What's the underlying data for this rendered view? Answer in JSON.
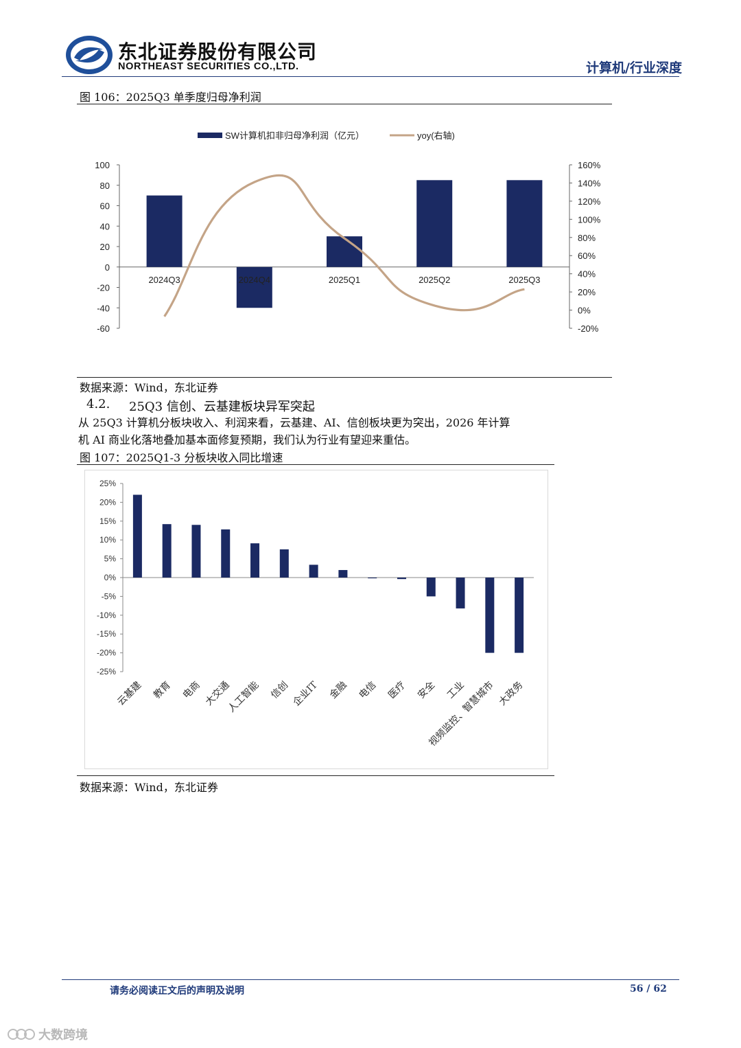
{
  "header": {
    "company_cn": "东北证券股份有限公司",
    "company_en": "NORTHEAST SECURITIES CO.,LTD.",
    "industry": "计算机/行业深度"
  },
  "figure106": {
    "caption": "图 106：2025Q3 单季度归母净利润",
    "source": "数据来源：Wind，东北证券"
  },
  "section": {
    "number": "4.2.",
    "title": "25Q3 信创、云基建板块异军突起",
    "paragraph_line1": "从 25Q3 计算机分板块收入、利润来看，云基建、AI、信创板块更为突出，2026 年计算",
    "paragraph_line2": "机 AI 商业化落地叠加基本面修复预期，我们认为行业有望迎来重估。"
  },
  "figure107": {
    "caption": "图 107：2025Q1-3 分板块收入同比增速",
    "source": "数据来源：Wind，东北证券"
  },
  "footer": {
    "disclaimer": "请务必阅读正文后的声明及说明",
    "page": "56",
    "separator": "/",
    "total": "62"
  },
  "watermark": "大数跨境",
  "colors": {
    "bar": "#1b2a63",
    "line": "#c4a487",
    "header_blue": "#1f3a7a"
  },
  "chart_data": [
    {
      "type": "bar+line",
      "categories": [
        "2024Q3",
        "2024Q4",
        "2025Q1",
        "2025Q2",
        "2025Q3"
      ],
      "series": [
        {
          "name": "SW计算机扣非归母净利润（亿元）",
          "axis": "left",
          "type": "bar",
          "values": [
            70,
            -40,
            30,
            85,
            85
          ]
        },
        {
          "name": "yoy(右轴)",
          "axis": "right",
          "type": "line",
          "values": [
            -0.07,
            1.41,
            0.79,
            0.05,
            0.23
          ]
        }
      ],
      "y_left": {
        "min": -60,
        "max": 100,
        "ticks": [
          "100",
          "80",
          "60",
          "40",
          "20",
          "0",
          "-20",
          "-40",
          "-60"
        ]
      },
      "y_right": {
        "min": -0.2,
        "max": 1.6,
        "ticks": [
          "160%",
          "140%",
          "120%",
          "100%",
          "80%",
          "60%",
          "40%",
          "20%",
          "0%",
          "-20%"
        ]
      },
      "legend_placement": "top"
    },
    {
      "type": "bar",
      "categories": [
        "云基建",
        "教育",
        "电商",
        "大交通",
        "人工智能",
        "信创",
        "企业IT",
        "金融",
        "电信",
        "医疗",
        "安全",
        "工业",
        "视频监控、智慧城市",
        "大政务"
      ],
      "values": [
        22,
        14.2,
        14,
        12.8,
        9.1,
        7.5,
        3.4,
        2,
        -0.2,
        -0.4,
        -5,
        -8.2,
        -20,
        -20
      ],
      "unit": "%",
      "y_ticks": [
        "25%",
        "20%",
        "15%",
        "10%",
        "5%",
        "0%",
        "-5%",
        "-10%",
        "-15%",
        "-20%",
        "-25%"
      ],
      "ylim": [
        -25,
        25
      ]
    }
  ]
}
